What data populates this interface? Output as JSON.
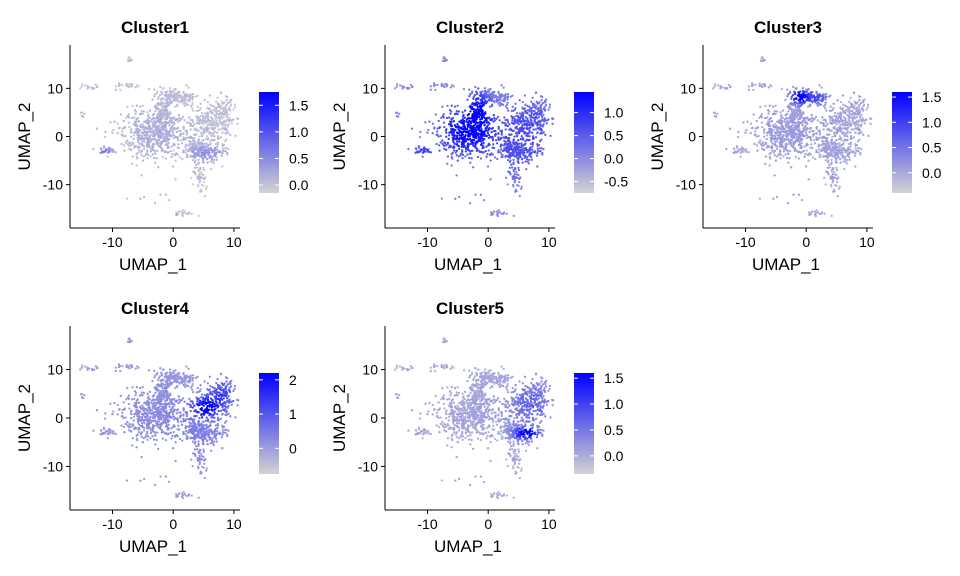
{
  "chart_data": [
    {
      "type": "scatter",
      "title": "Cluster1",
      "xlabel": "UMAP_1",
      "ylabel": "UMAP_2",
      "xlim": [
        -17,
        11
      ],
      "ylim": [
        -19,
        19
      ],
      "x_ticks": [
        -10,
        0,
        10
      ],
      "y_ticks": [
        -10,
        0,
        10
      ],
      "grid": false,
      "legend": {
        "position": "right",
        "ticks": [
          0.0,
          0.5,
          1.0,
          1.5
        ],
        "tick_labels": [
          "0.0",
          "0.5",
          "1.0",
          "1.5"
        ],
        "range": [
          -0.15,
          1.75
        ]
      },
      "color_low": "#d3d3d3",
      "color_high": "#0000ff",
      "hotspots": [
        {
          "x": -0.5,
          "y": -16.6,
          "sx": 0.6,
          "sy": 0.35,
          "value": 1.7
        },
        {
          "x": -11.2,
          "y": -3.0,
          "sx": 1.0,
          "sy": 0.5,
          "value": 0.7
        },
        {
          "x": 5.6,
          "y": -3.5,
          "sx": 2.0,
          "sy": 1.2,
          "value": 0.4
        },
        {
          "x": -3.0,
          "y": 1.0,
          "sx": 4.0,
          "sy": 4.0,
          "value": 0.15
        }
      ]
    },
    {
      "type": "scatter",
      "title": "Cluster2",
      "xlabel": "UMAP_1",
      "ylabel": "UMAP_2",
      "xlim": [
        -17,
        11
      ],
      "ylim": [
        -19,
        19
      ],
      "x_ticks": [
        -10,
        0,
        10
      ],
      "y_ticks": [
        -10,
        0,
        10
      ],
      "grid": false,
      "legend": {
        "position": "right",
        "ticks": [
          -0.5,
          0.0,
          0.5,
          1.0
        ],
        "tick_labels": [
          "-0.5",
          "0.0",
          "0.5",
          "1.0"
        ],
        "range": [
          -0.75,
          1.45
        ]
      },
      "color_low": "#d3d3d3",
      "color_high": "#0000ff",
      "hotspots": [
        {
          "x": -3.5,
          "y": 1.0,
          "sx": 3.2,
          "sy": 3.5,
          "value": 1.45
        },
        {
          "x": -1.5,
          "y": 5.5,
          "sx": 1.2,
          "sy": 2.5,
          "value": 1.1
        },
        {
          "x": 5.5,
          "y": -3.0,
          "sx": 3.5,
          "sy": 4.0,
          "value": 0.55
        },
        {
          "x": 7.0,
          "y": 3.5,
          "sx": 3.0,
          "sy": 3.0,
          "value": 0.5
        },
        {
          "x": -10.5,
          "y": -3.0,
          "sx": 1.5,
          "sy": 0.8,
          "value": 0.8
        }
      ]
    },
    {
      "type": "scatter",
      "title": "Cluster3",
      "xlabel": "UMAP_1",
      "ylabel": "UMAP_2",
      "xlim": [
        -17,
        11
      ],
      "ylim": [
        -19,
        19
      ],
      "x_ticks": [
        -10,
        0,
        10
      ],
      "y_ticks": [
        -10,
        0,
        10
      ],
      "grid": false,
      "legend": {
        "position": "right",
        "ticks": [
          0.0,
          0.5,
          1.0,
          1.5
        ],
        "tick_labels": [
          "0.0",
          "0.5",
          "1.0",
          "1.5"
        ],
        "range": [
          -0.4,
          1.6
        ]
      },
      "color_low": "#d3d3d3",
      "color_high": "#0000ff",
      "hotspots": [
        {
          "x": -1.2,
          "y": 8.3,
          "sx": 1.0,
          "sy": 1.0,
          "value": 1.6
        },
        {
          "x": 1.5,
          "y": 8.0,
          "sx": 1.5,
          "sy": 1.0,
          "value": 0.9
        },
        {
          "x": -3.0,
          "y": 1.0,
          "sx": 4.0,
          "sy": 4.0,
          "value": 0.1
        }
      ]
    },
    {
      "type": "scatter",
      "title": "Cluster4",
      "xlabel": "UMAP_1",
      "ylabel": "UMAP_2",
      "xlim": [
        -17,
        11
      ],
      "ylim": [
        -19,
        19
      ],
      "x_ticks": [
        -10,
        0,
        10
      ],
      "y_ticks": [
        -10,
        0,
        10
      ],
      "grid": false,
      "legend": {
        "position": "right",
        "ticks": [
          0,
          1,
          2
        ],
        "tick_labels": [
          "0",
          "1",
          "2"
        ],
        "range": [
          -0.75,
          2.2
        ]
      },
      "color_low": "#d3d3d3",
      "color_high": "#0000ff",
      "hotspots": [
        {
          "x": 5.3,
          "y": 2.2,
          "sx": 1.5,
          "sy": 1.4,
          "value": 2.3
        },
        {
          "x": 8.0,
          "y": 5.0,
          "sx": 1.5,
          "sy": 2.0,
          "value": 1.3
        },
        {
          "x": 5.0,
          "y": -3.0,
          "sx": 3.5,
          "sy": 4.0,
          "value": 0.35
        },
        {
          "x": -3.0,
          "y": 1.0,
          "sx": 5.0,
          "sy": 5.0,
          "value": 0.2
        }
      ]
    },
    {
      "type": "scatter",
      "title": "Cluster5",
      "xlabel": "UMAP_1",
      "ylabel": "UMAP_2",
      "xlim": [
        -17,
        11
      ],
      "ylim": [
        -19,
        19
      ],
      "x_ticks": [
        -10,
        0,
        10
      ],
      "y_ticks": [
        -10,
        0,
        10
      ],
      "grid": false,
      "legend": {
        "position": "right",
        "ticks": [
          0.0,
          0.5,
          1.0,
          1.5
        ],
        "tick_labels": [
          "0.0",
          "0.5",
          "1.0",
          "1.5"
        ],
        "range": [
          -0.35,
          1.6
        ]
      },
      "color_low": "#d3d3d3",
      "color_high": "#0000ff",
      "hotspots": [
        {
          "x": 6.3,
          "y": -3.2,
          "sx": 1.4,
          "sy": 0.9,
          "value": 1.7
        },
        {
          "x": 7.0,
          "y": 3.0,
          "sx": 2.5,
          "sy": 3.5,
          "value": 0.7
        },
        {
          "x": -3.0,
          "y": 1.0,
          "sx": 4.0,
          "sy": 4.0,
          "value": 0.05
        }
      ]
    }
  ],
  "umap_shape": {
    "components": [
      {
        "name": "left-lobe",
        "x": -3.0,
        "y": 0.5,
        "sx": 2.8,
        "sy": 2.6,
        "n": 560
      },
      {
        "name": "left-neck",
        "x": -1.5,
        "y": 5.0,
        "sx": 0.9,
        "sy": 1.6,
        "n": 90
      },
      {
        "name": "top-blob",
        "x": -0.5,
        "y": 8.3,
        "sx": 1.5,
        "sy": 0.9,
        "n": 110
      },
      {
        "name": "top-right-blob",
        "x": 2.2,
        "y": 8.0,
        "sx": 1.0,
        "sy": 0.8,
        "n": 50
      },
      {
        "name": "right-upper",
        "x": 6.5,
        "y": 3.0,
        "sx": 2.0,
        "sy": 2.0,
        "n": 260
      },
      {
        "name": "right-arm",
        "x": 8.6,
        "y": 6.0,
        "sx": 0.8,
        "sy": 1.5,
        "n": 60
      },
      {
        "name": "right-lower",
        "x": 5.2,
        "y": -3.0,
        "sx": 1.8,
        "sy": 1.2,
        "n": 180
      },
      {
        "name": "center-stem",
        "x": 3.5,
        "y": -2.0,
        "sx": 0.5,
        "sy": 1.2,
        "n": 60
      },
      {
        "name": "lower-tail",
        "x": 4.5,
        "y": -8.5,
        "sx": 0.6,
        "sy": 1.4,
        "n": 45
      },
      {
        "name": "left-isolated",
        "x": -11.0,
        "y": -3.0,
        "sx": 0.7,
        "sy": 0.35,
        "n": 30
      },
      {
        "name": "top-isolated",
        "x": -7.8,
        "y": 10.5,
        "sx": 1.0,
        "sy": 0.4,
        "n": 20
      },
      {
        "name": "top-left-isolated",
        "x": -14.0,
        "y": 10.3,
        "sx": 0.6,
        "sy": 0.3,
        "n": 15
      },
      {
        "name": "top-small",
        "x": -7.2,
        "y": 16.0,
        "sx": 0.3,
        "sy": 0.3,
        "n": 8
      },
      {
        "name": "bottom-small",
        "x": 1.5,
        "y": -16.0,
        "sx": 1.2,
        "sy": 0.3,
        "n": 18
      },
      {
        "name": "bottom-dots",
        "x": -2.0,
        "y": -12.5,
        "sx": 2.5,
        "sy": 0.6,
        "n": 8
      },
      {
        "name": "far-left",
        "x": -15.0,
        "y": 4.5,
        "sx": 0.3,
        "sy": 0.3,
        "n": 5
      }
    ]
  }
}
